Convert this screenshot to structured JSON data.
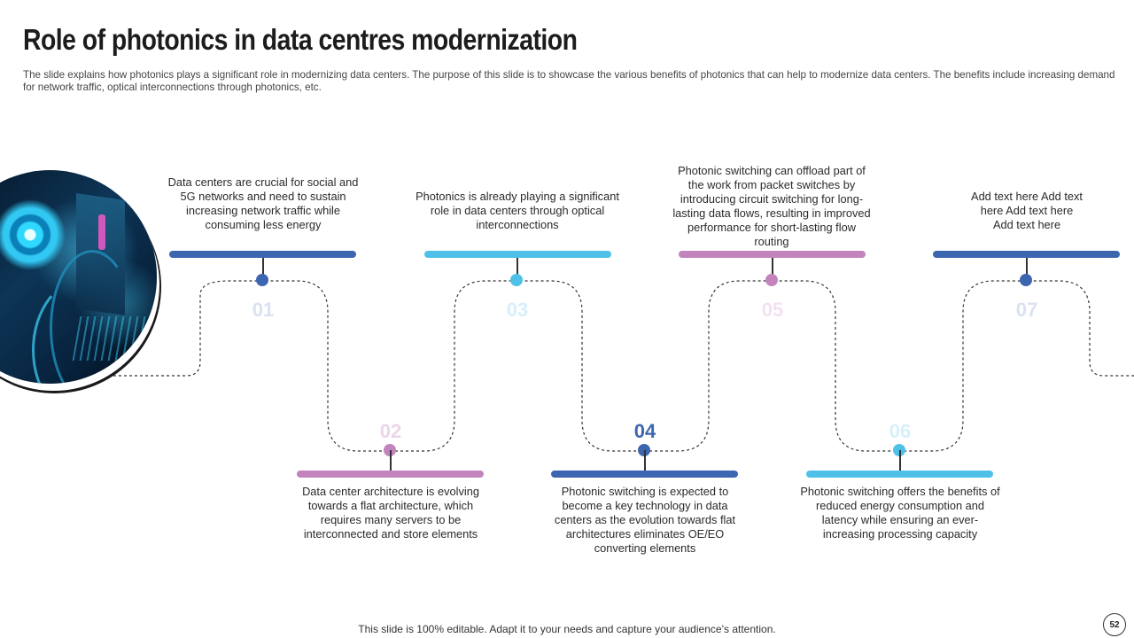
{
  "slide": {
    "title": "Role of photonics in data centres modernization",
    "subtitle": "The slide explains how photonics plays a significant role in modernizing data centers. The purpose of this slide is to showcase the various benefits of photonics that can help to modernize data centers. The benefits include increasing demand for network traffic, optical interconnections through photonics, etc.",
    "footer": "This slide is 100% editable. Adapt it to your needs and capture your audience’s attention.",
    "page_number": "52"
  },
  "colors": {
    "dark_blue": "#3d66b0",
    "light_blue": "#4fc1e8",
    "pink": "#c383bd"
  },
  "steps": [
    {
      "num": "01",
      "text": "Data centers are crucial for social and 5G networks and need to sustain increasing network traffic while consuming less energy"
    },
    {
      "num": "02",
      "text": "Data center architecture is evolving towards a flat architecture, which requires many servers to be interconnected and store elements"
    },
    {
      "num": "03",
      "text": "Photonics is already playing a significant role in data centers through optical interconnections"
    },
    {
      "num": "04",
      "text": "Photonic switching is expected to become a key technology in data centers as the evolution towards flat architectures eliminates OE/EO converting elements"
    },
    {
      "num": "05",
      "text": "Photonic switching can offload part of the work from packet switches by introducing circuit switching for long-lasting data flows, resulting in improved performance for short-lasting flow routing"
    },
    {
      "num": "06",
      "text": "Photonic switching offers the benefits of reduced energy consumption and latency while ensuring an ever-increasing processing capacity"
    },
    {
      "num": "07",
      "text": "Add text here Add text here Add text here Add text here"
    }
  ]
}
